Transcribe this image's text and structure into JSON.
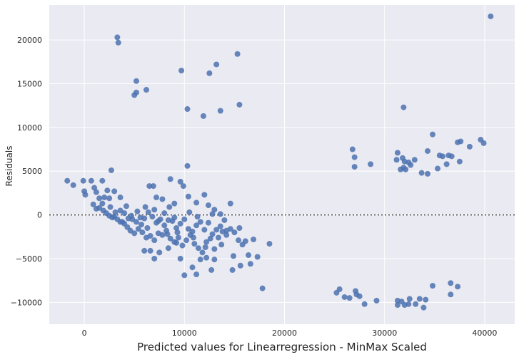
{
  "chart_data": {
    "type": "scatter",
    "title": "",
    "xlabel": "Predicted values for Linearregression - MinMax Scaled",
    "ylabel": "Residuals",
    "xlim": [
      -3500,
      43000
    ],
    "ylim": [
      -12500,
      24000
    ],
    "x_ticks": [
      0,
      10000,
      20000,
      30000,
      40000
    ],
    "x_tick_labels": [
      "0",
      "10000",
      "20000",
      "30000",
      "40000"
    ],
    "y_ticks": [
      -10000,
      -5000,
      0,
      5000,
      10000,
      15000,
      20000
    ],
    "y_tick_labels": [
      "−10000",
      "−5000",
      "0",
      "5000",
      "10000",
      "15000",
      "20000"
    ],
    "grid": true,
    "reference_line": 0,
    "colors": {
      "background": "#eaeaf2",
      "grid": "#ffffff",
      "marker": "#4c72b0",
      "reference_line": "#444444"
    },
    "points": [
      [
        3300,
        20300
      ],
      [
        3400,
        19700
      ],
      [
        40600,
        22700
      ],
      [
        15300,
        18400
      ],
      [
        13200,
        17200
      ],
      [
        9700,
        16500
      ],
      [
        12500,
        16200
      ],
      [
        5200,
        15300
      ],
      [
        6200,
        14300
      ],
      [
        5200,
        14000
      ],
      [
        5000,
        13700
      ],
      [
        15500,
        12600
      ],
      [
        10300,
        12100
      ],
      [
        13600,
        11900
      ],
      [
        11900,
        11300
      ],
      [
        31900,
        12300
      ],
      [
        1800,
        3900
      ],
      [
        2700,
        5100
      ],
      [
        -1700,
        3900
      ],
      [
        -1100,
        3400
      ],
      [
        -100,
        3900
      ],
      [
        700,
        3900
      ],
      [
        1000,
        3100
      ],
      [
        0,
        2700
      ],
      [
        100,
        2300
      ],
      [
        1200,
        2600
      ],
      [
        2300,
        2800
      ],
      [
        1500,
        1900
      ],
      [
        2000,
        2000
      ],
      [
        2500,
        1900
      ],
      [
        3000,
        2700
      ],
      [
        3600,
        2000
      ],
      [
        6500,
        3300
      ],
      [
        6900,
        3300
      ],
      [
        8600,
        4100
      ],
      [
        10300,
        5600
      ],
      [
        9600,
        3800
      ],
      [
        9900,
        3300
      ],
      [
        900,
        1200
      ],
      [
        1500,
        800
      ],
      [
        1900,
        500
      ],
      [
        2200,
        200
      ],
      [
        2500,
        -100
      ],
      [
        2800,
        -300
      ],
      [
        3000,
        -200
      ],
      [
        3300,
        -500
      ],
      [
        3600,
        -800
      ],
      [
        4000,
        -1000
      ],
      [
        4300,
        -1400
      ],
      [
        4600,
        -1800
      ],
      [
        5000,
        -2100
      ],
      [
        5400,
        -1600
      ],
      [
        5800,
        -2000
      ],
      [
        6200,
        -2600
      ],
      [
        6600,
        -2400
      ],
      [
        7000,
        -2900
      ],
      [
        7400,
        -2100
      ],
      [
        7800,
        -2300
      ],
      [
        8200,
        -1800
      ],
      [
        8600,
        -2700
      ],
      [
        9000,
        -3100
      ],
      [
        9400,
        -2600
      ],
      [
        9800,
        -3500
      ],
      [
        10200,
        -2900
      ],
      [
        10600,
        -2300
      ],
      [
        11000,
        -3300
      ],
      [
        11400,
        -3800
      ],
      [
        11800,
        -4300
      ],
      [
        12200,
        -3100
      ],
      [
        12600,
        -2700
      ],
      [
        13000,
        -3900
      ],
      [
        13400,
        -2600
      ],
      [
        13800,
        -1900
      ],
      [
        14200,
        -2300
      ],
      [
        14600,
        -1600
      ],
      [
        15000,
        -2000
      ],
      [
        15400,
        -2900
      ],
      [
        15800,
        -3400
      ],
      [
        16400,
        -4600
      ],
      [
        16900,
        -2800
      ],
      [
        17300,
        -4800
      ],
      [
        18500,
        -3300
      ],
      [
        17800,
        -8400
      ],
      [
        4000,
        200
      ],
      [
        4400,
        -400
      ],
      [
        4800,
        -500
      ],
      [
        5200,
        -800
      ],
      [
        5600,
        -300
      ],
      [
        6000,
        -400
      ],
      [
        6400,
        300
      ],
      [
        6800,
        -200
      ],
      [
        7200,
        -900
      ],
      [
        7600,
        -500
      ],
      [
        8000,
        -1200
      ],
      [
        8400,
        -600
      ],
      [
        8800,
        -700
      ],
      [
        9200,
        -1500
      ],
      [
        9600,
        -1000
      ],
      [
        10000,
        -500
      ],
      [
        10400,
        -1600
      ],
      [
        10800,
        -1900
      ],
      [
        11200,
        -1200
      ],
      [
        11600,
        -800
      ],
      [
        12000,
        -1700
      ],
      [
        12400,
        -900
      ],
      [
        12800,
        -2200
      ],
      [
        13200,
        -1700
      ],
      [
        13600,
        -1300
      ],
      [
        14000,
        -600
      ],
      [
        6000,
        -4100
      ],
      [
        6600,
        -4100
      ],
      [
        7000,
        -5000
      ],
      [
        7500,
        -4300
      ],
      [
        8400,
        -3800
      ],
      [
        9200,
        -3200
      ],
      [
        9600,
        -5000
      ],
      [
        10000,
        -6900
      ],
      [
        10800,
        -6000
      ],
      [
        11200,
        -6800
      ],
      [
        11600,
        -5100
      ],
      [
        12200,
        -4900
      ],
      [
        12700,
        -6300
      ],
      [
        13000,
        -5100
      ],
      [
        14800,
        -6300
      ],
      [
        15600,
        -5800
      ],
      [
        16600,
        -5600
      ],
      [
        7200,
        2000
      ],
      [
        7800,
        1800
      ],
      [
        8500,
        900
      ],
      [
        9000,
        1300
      ],
      [
        10400,
        2100
      ],
      [
        11200,
        1400
      ],
      [
        12000,
        2300
      ],
      [
        12400,
        1100
      ],
      [
        13000,
        600
      ],
      [
        13600,
        100
      ],
      [
        14200,
        -1800
      ],
      [
        14600,
        1300
      ],
      [
        15500,
        -1500
      ],
      [
        3600,
        500
      ],
      [
        4200,
        1000
      ],
      [
        4700,
        -100
      ],
      [
        5300,
        400
      ],
      [
        6100,
        900
      ],
      [
        7000,
        600
      ],
      [
        8000,
        200
      ],
      [
        9000,
        -300
      ],
      [
        10500,
        300
      ],
      [
        11300,
        -200
      ],
      [
        12800,
        100
      ],
      [
        1200,
        700
      ],
      [
        1800,
        1300
      ],
      [
        2600,
        900
      ],
      [
        3100,
        300
      ],
      [
        3800,
        -800
      ],
      [
        5700,
        -1100
      ],
      [
        6300,
        -1500
      ],
      [
        7400,
        -700
      ],
      [
        8300,
        -2200
      ],
      [
        9300,
        -2000
      ],
      [
        10900,
        -2600
      ],
      [
        12100,
        -3700
      ],
      [
        13700,
        -3400
      ],
      [
        14900,
        -4700
      ],
      [
        16100,
        -3000
      ],
      [
        25200,
        -8900
      ],
      [
        25500,
        -8500
      ],
      [
        26000,
        -9400
      ],
      [
        26500,
        -9500
      ],
      [
        27200,
        -9100
      ],
      [
        27500,
        -9300
      ],
      [
        27100,
        -8700
      ],
      [
        28000,
        -10200
      ],
      [
        29200,
        -9800
      ],
      [
        31300,
        -10300
      ],
      [
        31700,
        -9900
      ],
      [
        32000,
        -10300
      ],
      [
        31300,
        -9800
      ],
      [
        32400,
        -10200
      ],
      [
        32500,
        -9600
      ],
      [
        33100,
        -10200
      ],
      [
        33500,
        -9600
      ],
      [
        33900,
        -10600
      ],
      [
        34100,
        -9700
      ],
      [
        34800,
        -8100
      ],
      [
        36600,
        -9100
      ],
      [
        36600,
        -7800
      ],
      [
        37300,
        -8200
      ],
      [
        26800,
        7500
      ],
      [
        27000,
        6600
      ],
      [
        27000,
        5500
      ],
      [
        28600,
        5800
      ],
      [
        31200,
        6300
      ],
      [
        31300,
        7100
      ],
      [
        31600,
        5200
      ],
      [
        31800,
        6500
      ],
      [
        31900,
        5400
      ],
      [
        32000,
        6100
      ],
      [
        32100,
        5200
      ],
      [
        32400,
        6000
      ],
      [
        32600,
        5700
      ],
      [
        33000,
        6300
      ],
      [
        33700,
        4800
      ],
      [
        34300,
        7300
      ],
      [
        34300,
        4700
      ],
      [
        34800,
        9200
      ],
      [
        35300,
        5300
      ],
      [
        35500,
        6800
      ],
      [
        35800,
        6700
      ],
      [
        36200,
        5800
      ],
      [
        36400,
        6800
      ],
      [
        36700,
        6700
      ],
      [
        37300,
        8300
      ],
      [
        37500,
        6100
      ],
      [
        37600,
        8400
      ],
      [
        38500,
        7800
      ],
      [
        39600,
        8600
      ],
      [
        39900,
        8200
      ]
    ]
  }
}
